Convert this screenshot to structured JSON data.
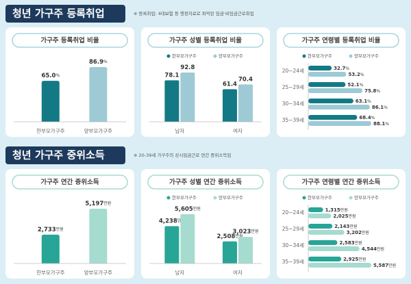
{
  "sections": [
    {
      "title": "청년 가구주 등록취업",
      "note": "※ 등록취업: 4대보험 등 행정자료로 파악된 임금·비임금근로취업"
    },
    {
      "title": "청년 가구주 중위소득",
      "note": "※ 20-39세 가구주의 상시임금근로 연간 중위소득임"
    }
  ],
  "chart_data": [
    {
      "type": "bar",
      "title": "가구주 등록취업 비율",
      "categories": [
        "한부모가구주",
        "양부모가구주"
      ],
      "values": [
        65.0,
        86.9
      ],
      "value_labels": [
        "65.0",
        "86.9"
      ],
      "unit": "%",
      "colors": [
        "#137a85",
        "#9dcad5"
      ]
    },
    {
      "type": "bar",
      "title": "가구주 성별 등록취업 비율",
      "categories": [
        "남자",
        "여자"
      ],
      "unit": "",
      "series": [
        {
          "name": "한부모가구주",
          "color": "#137a85",
          "values": [
            78.1,
            61.4
          ]
        },
        {
          "name": "양부모가구주",
          "color": "#9dcad5",
          "values": [
            92.8,
            70.4
          ]
        }
      ]
    },
    {
      "type": "hbar",
      "title": "가구주 연령별 등록취업 비율",
      "categories": [
        "20~24세",
        "25~29세",
        "30~34세",
        "35~39세"
      ],
      "unit": "%",
      "series": [
        {
          "name": "한부모가구주",
          "color": "#137a85",
          "values": [
            32.7,
            52.1,
            63.1,
            68.4
          ]
        },
        {
          "name": "양부모가구주",
          "color": "#9dcad5",
          "values": [
            53.2,
            75.8,
            86.1,
            88.1
          ]
        }
      ]
    },
    {
      "type": "bar",
      "title": "가구주 연간 중위소득",
      "categories": [
        "한부모가구주",
        "양부모가구주"
      ],
      "values": [
        2733,
        5197
      ],
      "value_labels": [
        "2,733",
        "5,197"
      ],
      "unit": "만원",
      "colors": [
        "#27a596",
        "#a6dbd0"
      ]
    },
    {
      "type": "bar",
      "title": "가구주 성별 연간 중위소득",
      "categories": [
        "남자",
        "여자"
      ],
      "unit": "만원",
      "series": [
        {
          "name": "한부모가구주",
          "color": "#27a596",
          "values": [
            4238,
            2508
          ],
          "value_labels": [
            "4,238",
            "2,508"
          ]
        },
        {
          "name": "양부모가구주",
          "color": "#a6dbd0",
          "values": [
            5605,
            3023
          ],
          "value_labels": [
            "5,605",
            "3,023"
          ]
        }
      ]
    },
    {
      "type": "hbar",
      "title": "가구주 연령별 연간 중위소득",
      "categories": [
        "20~24세",
        "25~29세",
        "30~34세",
        "35~39세"
      ],
      "unit": "만원",
      "series": [
        {
          "name": "한부모가구주",
          "color": "#27a596",
          "values": [
            1315,
            2143,
            2583,
            2925
          ],
          "value_labels": [
            "1,315",
            "2,143",
            "2,583",
            "2,925"
          ]
        },
        {
          "name": "양부모가구주",
          "color": "#a6dbd0",
          "values": [
            2025,
            3202,
            4544,
            5587
          ],
          "value_labels": [
            "2,025",
            "3,202",
            "4,544",
            "5,587"
          ]
        }
      ]
    }
  ]
}
